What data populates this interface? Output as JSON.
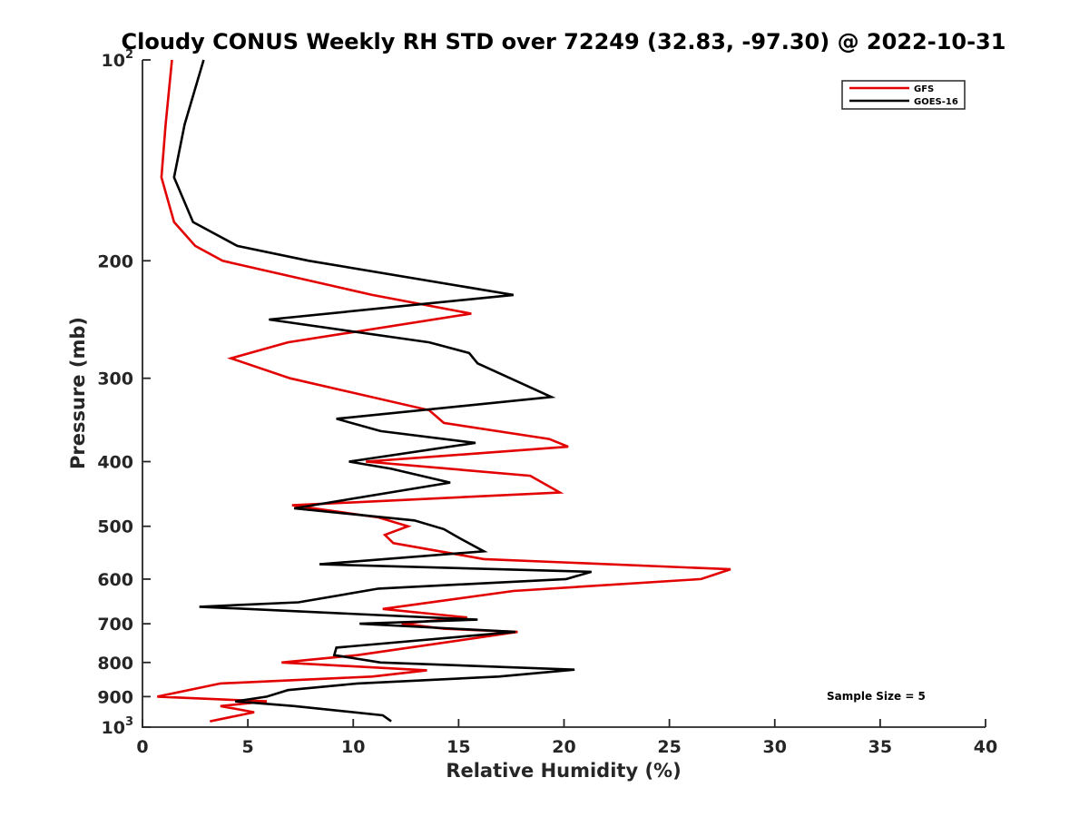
{
  "chart_data": {
    "type": "line",
    "title": "Cloudy CONUS Weekly RH STD over 72249 (32.83, -97.30) @ 2022-10-31",
    "xlabel": "Relative Humidity (%)",
    "ylabel": "Pressure (mb)",
    "xlim": [
      0,
      40
    ],
    "ylim": [
      100,
      1000
    ],
    "y_scale": "log",
    "y_reversed": true,
    "grid": false,
    "x_ticks": [
      0,
      5,
      10,
      15,
      20,
      25,
      30,
      35,
      40
    ],
    "x_tick_labels": [
      "0",
      "5",
      "10",
      "15",
      "20",
      "25",
      "30",
      "35",
      "40"
    ],
    "y_ticks": [
      100,
      200,
      300,
      400,
      500,
      600,
      700,
      800,
      900,
      1000
    ],
    "y_tick_labels": [
      {
        "base": "10",
        "sup": "2"
      },
      {
        "base": "200"
      },
      {
        "base": "300"
      },
      {
        "base": "400"
      },
      {
        "base": "500"
      },
      {
        "base": "600"
      },
      {
        "base": "700"
      },
      {
        "base": "800"
      },
      {
        "base": "900"
      },
      {
        "base": "10",
        "sup": "3"
      }
    ],
    "legend_position": "top-right",
    "annotation": "Sample Size = 5",
    "series": [
      {
        "name": "GFS",
        "color": "#e30000",
        "points": [
          [
            1.4,
            100
          ],
          [
            1.1,
            125
          ],
          [
            0.9,
            150
          ],
          [
            1.5,
            175
          ],
          [
            2.5,
            190
          ],
          [
            3.8,
            200
          ],
          [
            10.9,
            225
          ],
          [
            15.6,
            240
          ],
          [
            6.9,
            265
          ],
          [
            4.2,
            280
          ],
          [
            7.0,
            300
          ],
          [
            13.6,
            335
          ],
          [
            14.3,
            350
          ],
          [
            19.3,
            370
          ],
          [
            20.2,
            380
          ],
          [
            10.6,
            400
          ],
          [
            18.4,
            420
          ],
          [
            19.8,
            445
          ],
          [
            7.1,
            465
          ],
          [
            11.2,
            485
          ],
          [
            12.6,
            500
          ],
          [
            11.5,
            515
          ],
          [
            11.9,
            530
          ],
          [
            16.2,
            560
          ],
          [
            27.9,
            580
          ],
          [
            26.5,
            600
          ],
          [
            17.6,
            625
          ],
          [
            11.4,
            665
          ],
          [
            15.4,
            685
          ],
          [
            12.3,
            700
          ],
          [
            14.3,
            712
          ],
          [
            17.8,
            720
          ],
          [
            10.2,
            780
          ],
          [
            6.6,
            800
          ],
          [
            13.5,
            822
          ],
          [
            10.9,
            840
          ],
          [
            3.7,
            860
          ],
          [
            0.7,
            900
          ],
          [
            5.9,
            915
          ],
          [
            3.7,
            930
          ],
          [
            5.3,
            950
          ],
          [
            3.2,
            980
          ]
        ]
      },
      {
        "name": "GOES-16",
        "color": "#000000",
        "points": [
          [
            2.9,
            100
          ],
          [
            2.0,
            125
          ],
          [
            1.5,
            150
          ],
          [
            2.4,
            175
          ],
          [
            4.5,
            190
          ],
          [
            7.9,
            200
          ],
          [
            17.6,
            225
          ],
          [
            6.0,
            245
          ],
          [
            13.6,
            265
          ],
          [
            15.5,
            275
          ],
          [
            15.9,
            285
          ],
          [
            19.4,
            320
          ],
          [
            9.2,
            345
          ],
          [
            11.3,
            360
          ],
          [
            15.8,
            375
          ],
          [
            9.8,
            400
          ],
          [
            11.8,
            410
          ],
          [
            14.6,
            430
          ],
          [
            7.2,
            470
          ],
          [
            12.9,
            490
          ],
          [
            14.3,
            505
          ],
          [
            15.0,
            520
          ],
          [
            16.2,
            545
          ],
          [
            8.4,
            570
          ],
          [
            21.3,
            585
          ],
          [
            20.1,
            600
          ],
          [
            11.2,
            620
          ],
          [
            7.4,
            650
          ],
          [
            2.7,
            660
          ],
          [
            15.9,
            690
          ],
          [
            10.3,
            700
          ],
          [
            17.7,
            720
          ],
          [
            9.2,
            760
          ],
          [
            9.1,
            780
          ],
          [
            11.3,
            800
          ],
          [
            20.5,
            820
          ],
          [
            16.9,
            840
          ],
          [
            10.2,
            860
          ],
          [
            6.9,
            880
          ],
          [
            5.9,
            900
          ],
          [
            4.4,
            915
          ],
          [
            7.2,
            930
          ],
          [
            11.4,
            960
          ],
          [
            11.8,
            980
          ]
        ]
      }
    ]
  }
}
